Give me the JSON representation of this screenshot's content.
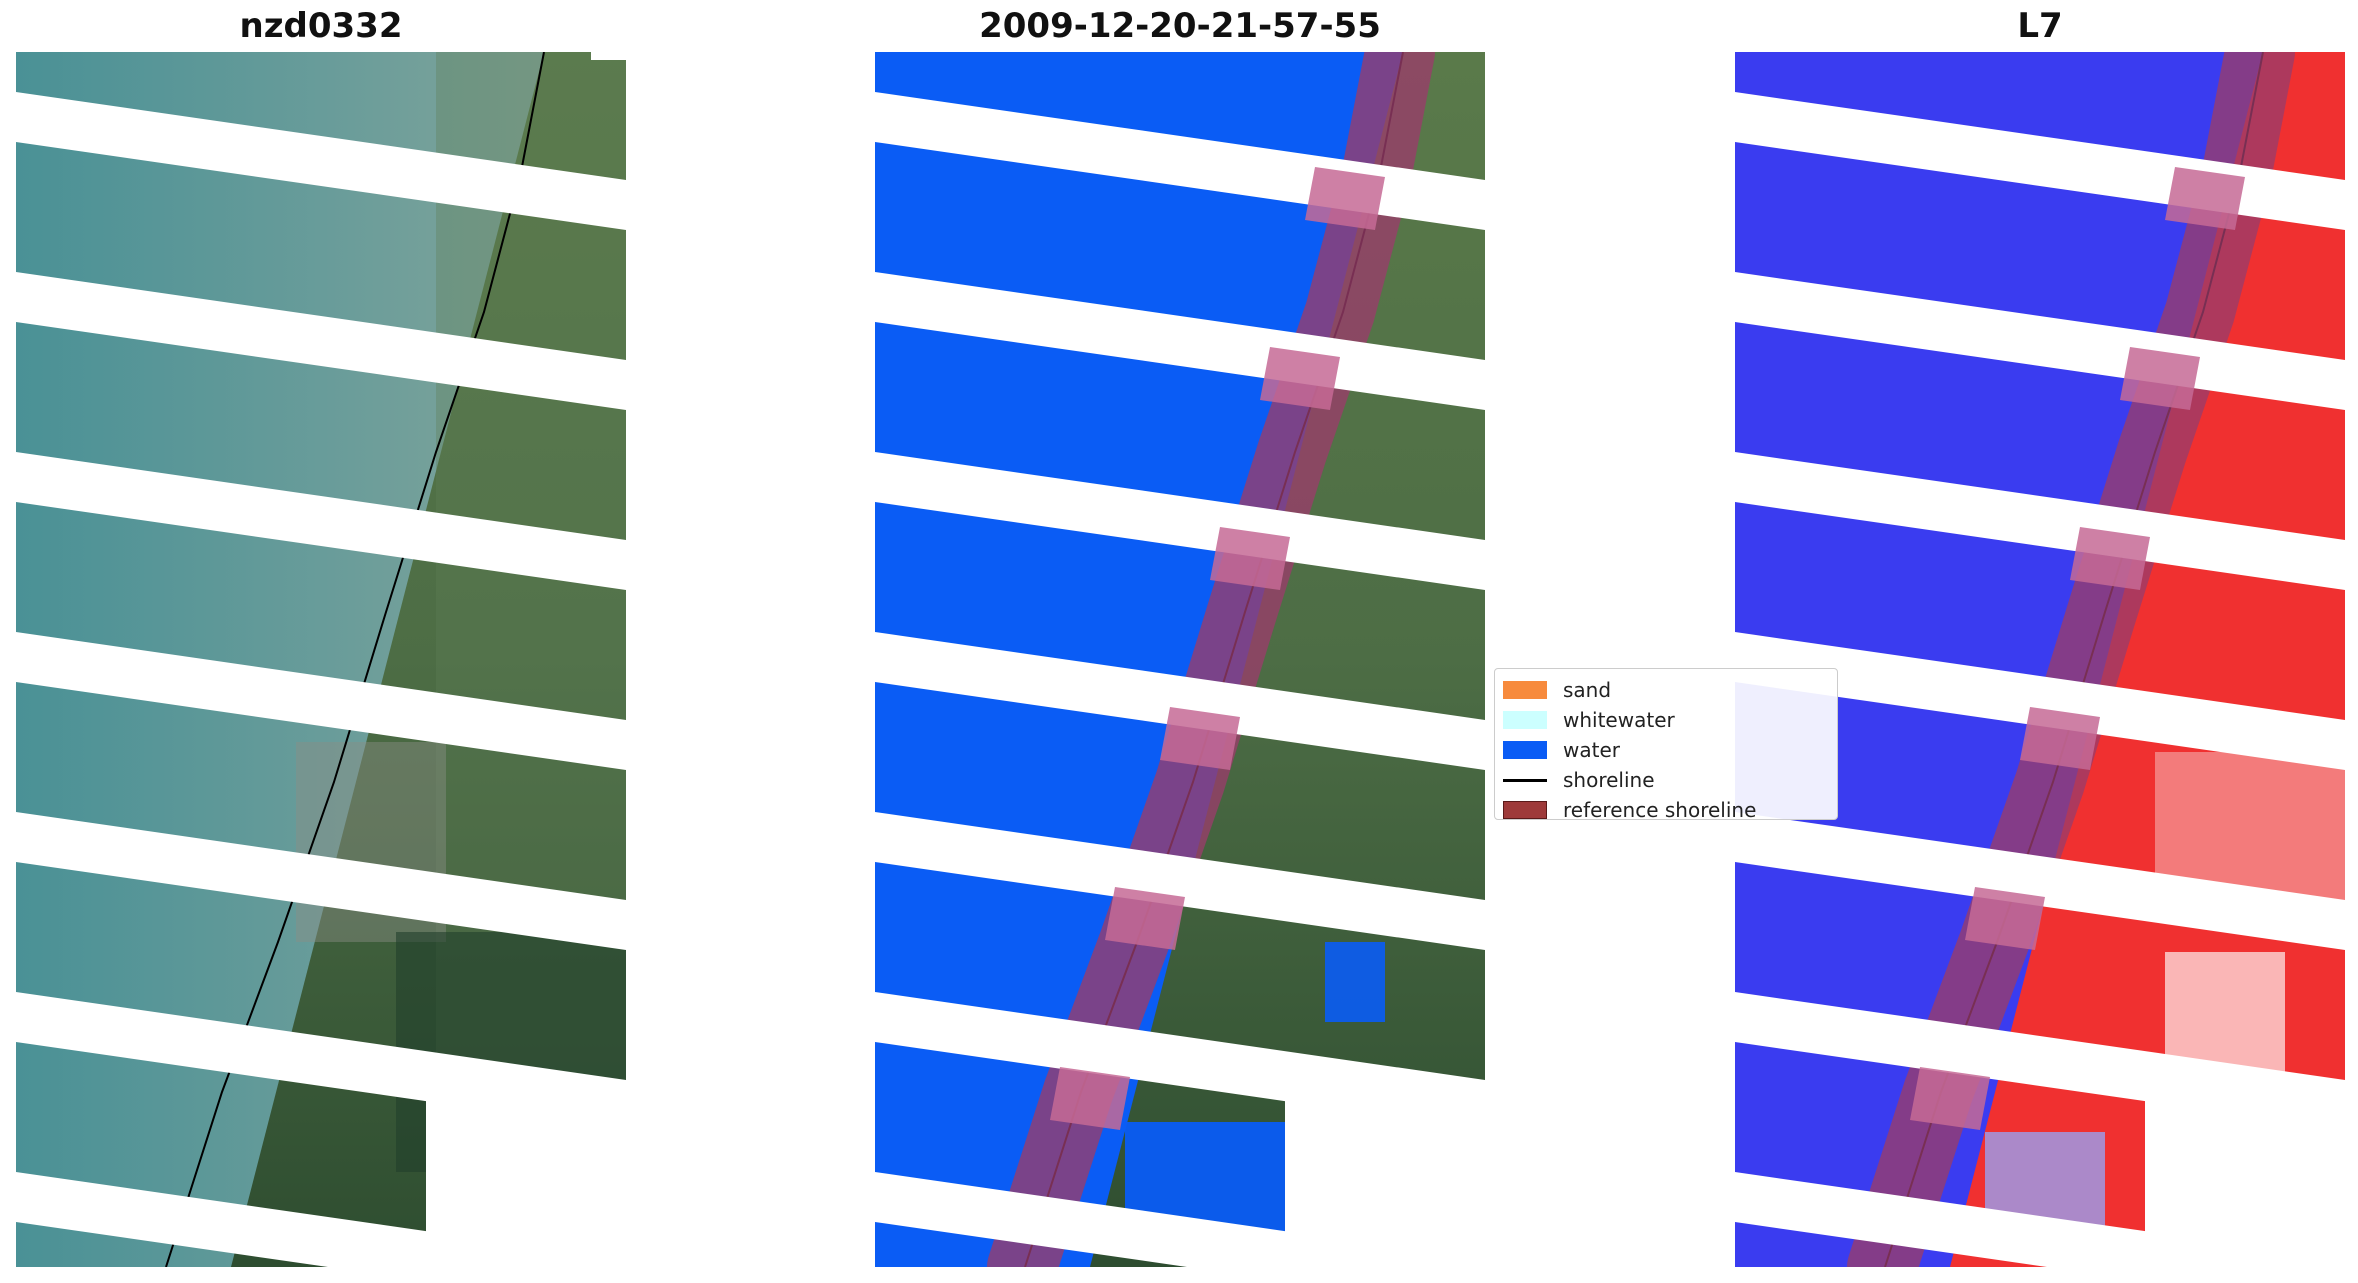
{
  "panels": [
    {
      "title": "nzd0332"
    },
    {
      "title": "2009-12-20-21-57-55"
    },
    {
      "title": "L7"
    }
  ],
  "legend": {
    "items": [
      {
        "label": "sand",
        "color": "#f78a3c",
        "kind": "patch"
      },
      {
        "label": "whitewater",
        "color": "#ccffff",
        "kind": "patch"
      },
      {
        "label": "water",
        "color": "#0a5cf5",
        "kind": "patch"
      },
      {
        "label": "shoreline",
        "color": "#000000",
        "kind": "line"
      },
      {
        "label": "reference shoreline",
        "color": "#9e3a3a",
        "kind": "patch"
      }
    ]
  },
  "colors": {
    "sea": "#4f8f94",
    "land": "#3f6b3a",
    "water_class": "#0a5cf5",
    "buffer": "#9a3c6a",
    "index_blue": "#3a3cf0",
    "index_red": "#f01e1e",
    "gap": "#ffffff"
  }
}
